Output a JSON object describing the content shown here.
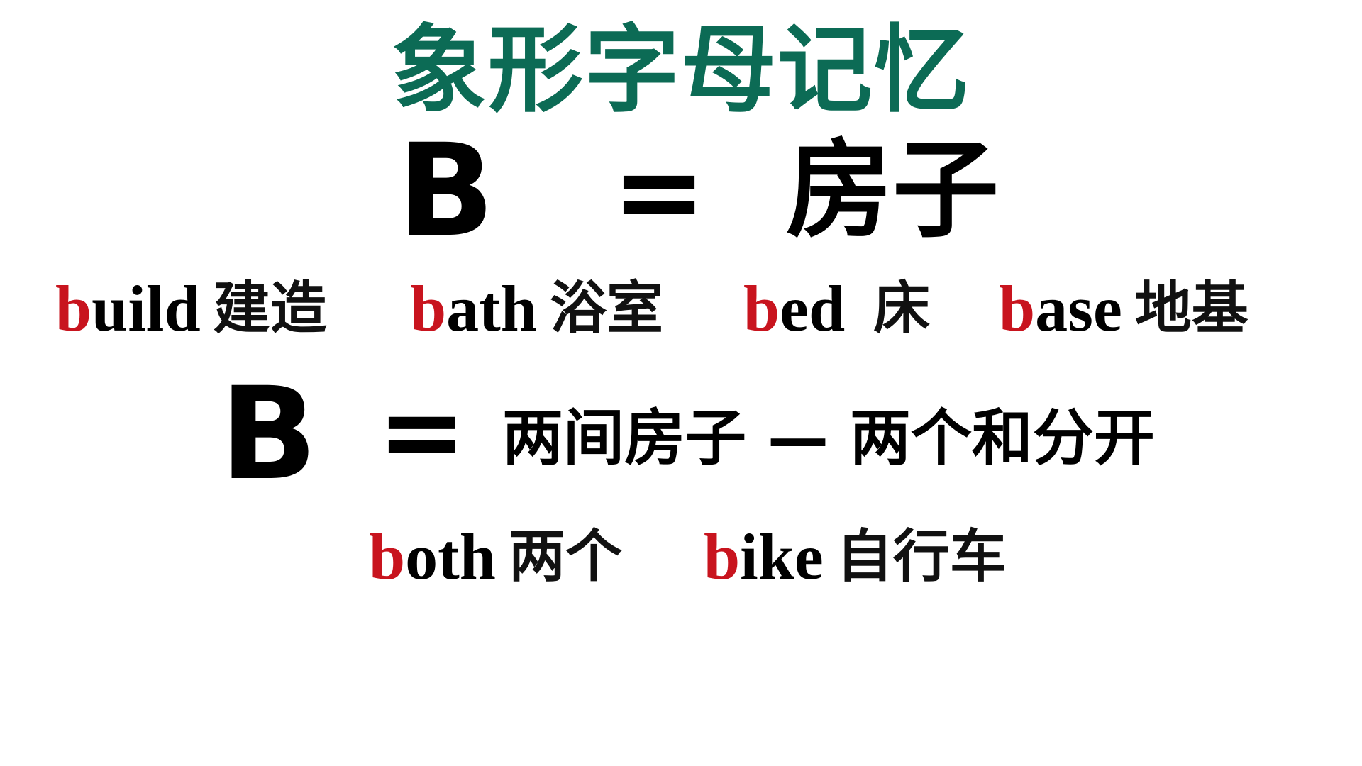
{
  "title": "象形字母记忆",
  "row1": {
    "letter": "B",
    "equals": "=",
    "meaning": "房子"
  },
  "examples_row1": [
    {
      "first": "b",
      "rest": "uild",
      "zh": "建造"
    },
    {
      "first": "b",
      "rest": "ath",
      "zh": "浴室"
    },
    {
      "first": "b",
      "rest": "ed",
      "zh": "床"
    },
    {
      "first": "b",
      "rest": "ase",
      "zh": "地基"
    }
  ],
  "row2": {
    "letter": "B",
    "equals": "=",
    "meaning": "两间房子 — 两个和分开"
  },
  "examples_row2": [
    {
      "first": "b",
      "rest": "oth",
      "zh": "两个"
    },
    {
      "first": "b",
      "rest": "ike",
      "zh": "自行车"
    }
  ],
  "colors": {
    "title": "#0c6b55",
    "highlight": "#c8141e",
    "text": "#000000"
  }
}
